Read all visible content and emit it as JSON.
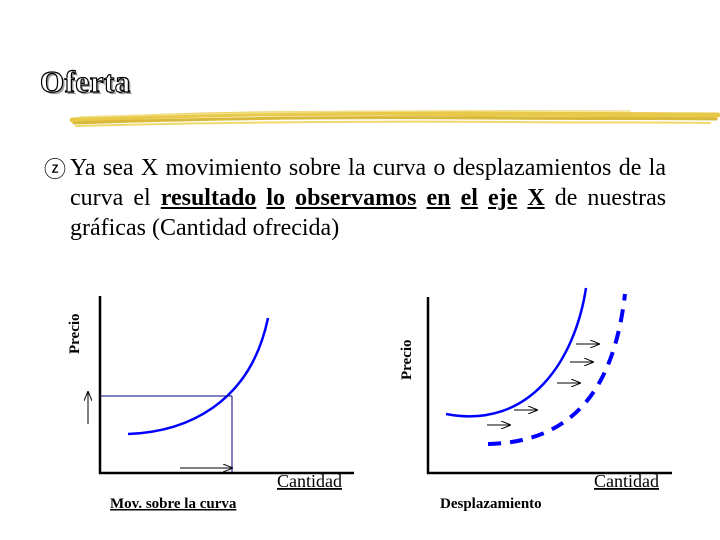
{
  "slide": {
    "title": "Oferta",
    "bullet_icon": "z-bullet-icon",
    "bullet": {
      "part1": "Ya sea X movimiento sobre la curva o desplazamientos de la curva el",
      "w_resultado": "resultado",
      "w_lo": "lo",
      "w_observamos": "observamos",
      "w_en": "en",
      "w_el": "el",
      "w_eje": "eje",
      "w_x": "X",
      "part2": "de nuestras gráficas (Cantidad ofrecida)"
    }
  },
  "left_graph": {
    "ylabel": "Precio",
    "xlabel": "Cantidad",
    "caption": "Mov. sobre la curva"
  },
  "right_graph": {
    "ylabel": "Precio",
    "xlabel": "Cantidad",
    "caption": "Desplazamiento"
  },
  "colors": {
    "curve": "#0000ff",
    "axis": "#000000",
    "guide": "#000080",
    "title_rule": "#e8c94a"
  }
}
